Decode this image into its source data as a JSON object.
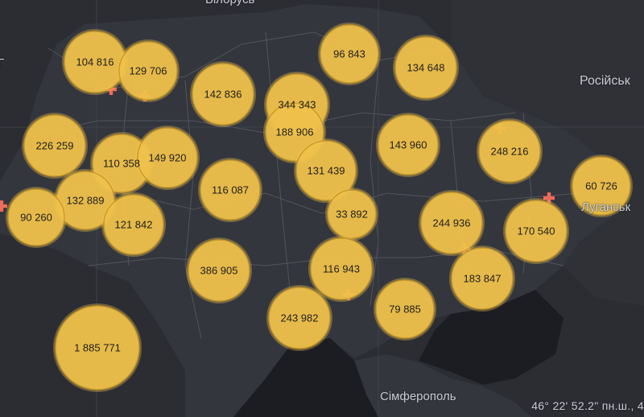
{
  "colors": {
    "background": "#2b2d33",
    "land_ukraine": "#34363d",
    "land_neighbors": "#2f3137",
    "water": "#1c1d22",
    "borders": "#5a5d66",
    "bubble_fill": "#f0c24b",
    "bubble_stroke": "#c99a2a",
    "hospital_marker": "#f06a5a"
  },
  "icons": {
    "marker": "plus-icon"
  },
  "labels": {
    "russia": "Російськ",
    "luhansk": "Луганськ",
    "simferopol": "Сімферополь",
    "top_cut": "Білорусь",
    "left_cut": "Г"
  },
  "coordinates_readout": "46° 22' 52.2\" пн.ш., 4",
  "clusters": [
    {
      "id": "volyn",
      "value": "104 816"
    },
    {
      "id": "rivne",
      "value": "129 706"
    },
    {
      "id": "zhytomyr",
      "value": "142 836"
    },
    {
      "id": "kyiv-obl",
      "value": "344 343"
    },
    {
      "id": "kyiv-city",
      "value": "188 906"
    },
    {
      "id": "chernihiv",
      "value": "96 843"
    },
    {
      "id": "sumy",
      "value": "134 648"
    },
    {
      "id": "lviv",
      "value": "226 259"
    },
    {
      "id": "ternopil",
      "value": "110 358"
    },
    {
      "id": "khmelnytskyi",
      "value": "149 920"
    },
    {
      "id": "vinnytsia",
      "value": "116 087"
    },
    {
      "id": "cherkasy",
      "value": "131 439"
    },
    {
      "id": "poltava",
      "value": "143 960"
    },
    {
      "id": "kharkiv",
      "value": "248 216"
    },
    {
      "id": "ivano-frankivsk",
      "value": "132 889"
    },
    {
      "id": "zakarpattia",
      "value": "90 260"
    },
    {
      "id": "chernivtsi",
      "value": "121 842"
    },
    {
      "id": "kirovohrad",
      "value": "33 892"
    },
    {
      "id": "dnipro",
      "value": "244 936"
    },
    {
      "id": "luhansk",
      "value": "60 726"
    },
    {
      "id": "donetsk",
      "value": "170 540"
    },
    {
      "id": "odesa",
      "value": "386 905"
    },
    {
      "id": "mykolaiv",
      "value": "116 943"
    },
    {
      "id": "zaporizhzhia",
      "value": "183 847"
    },
    {
      "id": "kherson",
      "value": "79 885"
    },
    {
      "id": "crimea-odesa",
      "value": "243 982"
    },
    {
      "id": "total",
      "value": "1 885 771"
    }
  ]
}
